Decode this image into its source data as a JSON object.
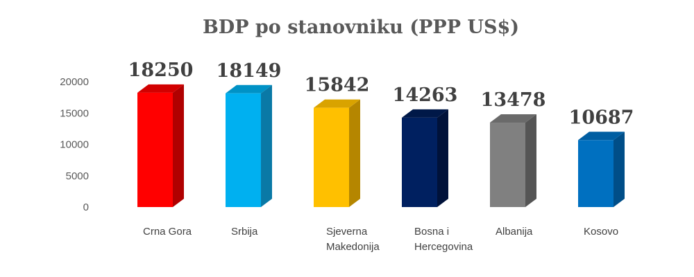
{
  "chart_data": {
    "type": "bar",
    "title": "BDP po stanovniku (PPP US$)",
    "xlabel": "",
    "ylabel": "",
    "ylim": [
      0,
      20000
    ],
    "yticks": [
      0,
      5000,
      10000,
      15000,
      20000
    ],
    "grid": false,
    "legend": "none",
    "categories": [
      [
        "Crna Gora"
      ],
      [
        "Srbija"
      ],
      [
        "Sjeverna",
        "Makedonija"
      ],
      [
        "Bosna i",
        "Hercegovina"
      ],
      [
        "Albanija"
      ],
      [
        "Kosovo"
      ]
    ],
    "values": [
      18250,
      18149,
      15842,
      14263,
      13478,
      10687
    ],
    "data_labels": [
      "18250",
      "18149",
      "15842",
      "14263",
      "13478",
      "10687"
    ],
    "colors": [
      {
        "front": "#ff0000",
        "side": "#b00000",
        "top": "#d20000"
      },
      {
        "front": "#00b0f0",
        "side": "#0a79a6",
        "top": "#0092c6"
      },
      {
        "front": "#ffc000",
        "side": "#b58600",
        "top": "#d9a300"
      },
      {
        "front": "#002060",
        "side": "#00123a",
        "top": "#001848"
      },
      {
        "front": "#808080",
        "side": "#555555",
        "top": "#6a6a6a"
      },
      {
        "front": "#0070c0",
        "side": "#004e88",
        "top": "#005ea2"
      }
    ]
  }
}
